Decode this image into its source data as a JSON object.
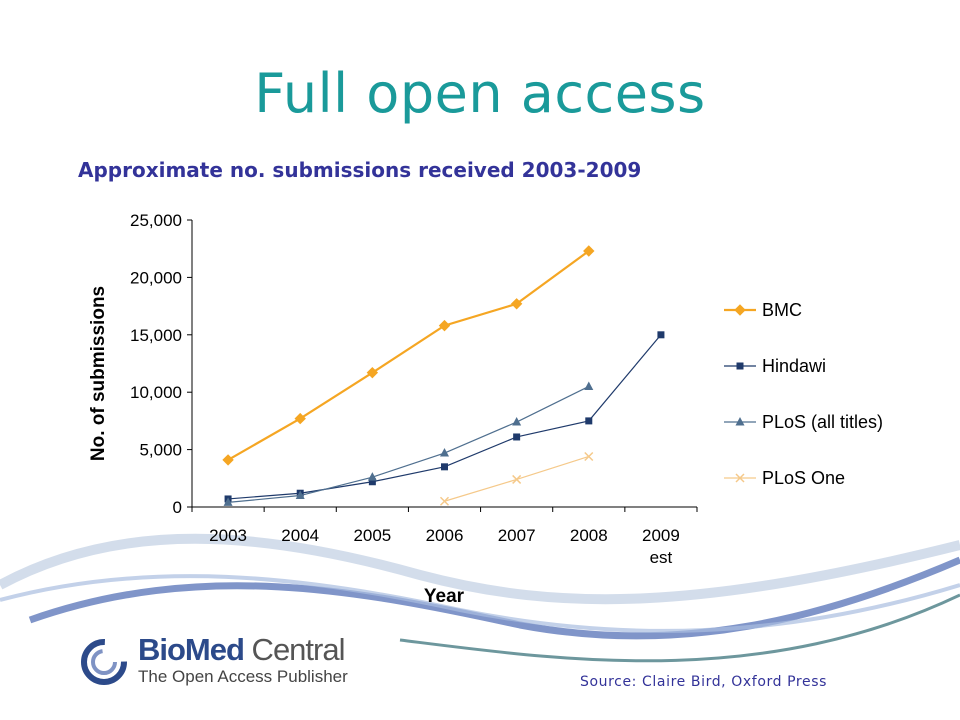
{
  "slide": {
    "title": "Full open access",
    "subtitle": "Approximate no. submissions received 2003-2009",
    "source": "Source: Claire Bird, Oxford Press"
  },
  "logo": {
    "brand_bold": "BioMed",
    "brand_light": " Central",
    "tagline": "The Open Access Publisher"
  },
  "chart_data": {
    "type": "line",
    "xlabel": "Year",
    "ylabel": "No. of submissions",
    "categories": [
      "2003",
      "2004",
      "2005",
      "2006",
      "2007",
      "2008",
      "2009 est"
    ],
    "ylim": [
      0,
      25000
    ],
    "yticks": [
      "0",
      "5,000",
      "10,000",
      "15,000",
      "20,000",
      "25,000"
    ],
    "ytick_values": [
      0,
      5000,
      10000,
      15000,
      20000,
      25000
    ],
    "legend_position": "right",
    "series": [
      {
        "name": "BMC",
        "color": "#f5a623",
        "marker": "diamond",
        "values": [
          4100,
          7700,
          11700,
          15800,
          17700,
          22300,
          null
        ]
      },
      {
        "name": "Hindawi",
        "color": "#1f3a6b",
        "marker": "square",
        "values": [
          700,
          1200,
          2200,
          3500,
          6100,
          7500,
          15000
        ]
      },
      {
        "name": "PLoS (all titles)",
        "color": "#4f6f8f",
        "marker": "triangle",
        "values": [
          400,
          1000,
          2600,
          4700,
          7400,
          10500,
          null
        ]
      },
      {
        "name": "PLoS One",
        "color": "#f5c98a",
        "marker": "x",
        "values": [
          null,
          null,
          null,
          500,
          2400,
          4400,
          null
        ]
      }
    ]
  }
}
